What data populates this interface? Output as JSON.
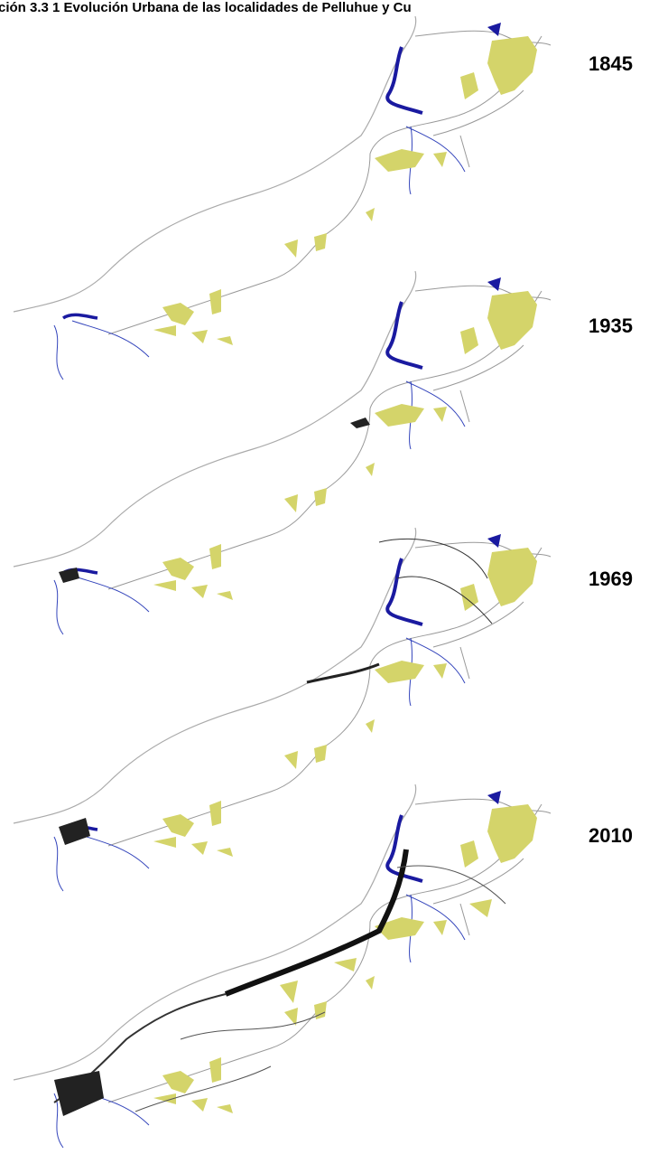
{
  "title": "ción 3.3 1 Evolución Urbana de las localidades de Pelluhue y Cu",
  "maps": [
    {
      "year": "1845"
    },
    {
      "year": "1935"
    },
    {
      "year": "1969"
    },
    {
      "year": "2010"
    }
  ]
}
